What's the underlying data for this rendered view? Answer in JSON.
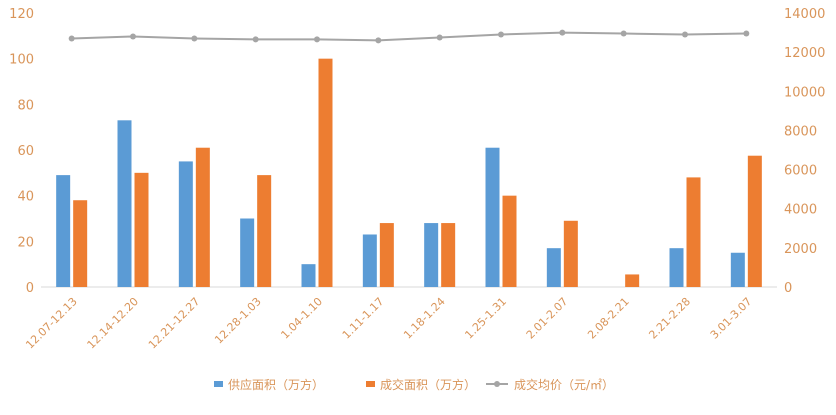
{
  "chart_data": {
    "type": "bar+line",
    "categories": [
      "12.07-12.13",
      "12.14-12.20",
      "12.21-12.27",
      "12.28-1.03",
      "1.04-1.10",
      "1.11-1.17",
      "1.18-1.24",
      "1.25-1.31",
      "2.01-2.07",
      "2.08-2.21",
      "2.21-2.28",
      "3.01-3.07"
    ],
    "series": [
      {
        "name": "供应面积（万方）",
        "type": "bar",
        "axis": "left",
        "color": "#5b9bd5",
        "values": [
          49,
          73,
          55,
          30,
          10,
          23,
          28,
          61,
          17,
          0,
          17,
          15
        ]
      },
      {
        "name": "成交面积（万方）",
        "type": "bar",
        "axis": "left",
        "color": "#ed7d31",
        "values": [
          38,
          50,
          61,
          49,
          100,
          28,
          28,
          40,
          29,
          5.5,
          48,
          57.5
        ]
      },
      {
        "name": "成交均价（元/㎡）",
        "type": "line",
        "axis": "right",
        "color": "#a5a5a5",
        "values": [
          12700,
          12800,
          12700,
          12650,
          12650,
          12600,
          12750,
          12900,
          13000,
          12950,
          12900,
          12950
        ]
      }
    ],
    "left_axis": {
      "range": [
        0,
        120
      ],
      "ticks": [
        "0",
        "20",
        "40",
        "60",
        "80",
        "100",
        "120"
      ]
    },
    "right_axis": {
      "range": [
        0,
        14000
      ],
      "ticks": [
        "0",
        "2000",
        "4000",
        "6000",
        "8000",
        "10000",
        "12000",
        "14000"
      ]
    },
    "tick_color": "#d9955a",
    "grid": false,
    "legend_position": "bottom"
  }
}
